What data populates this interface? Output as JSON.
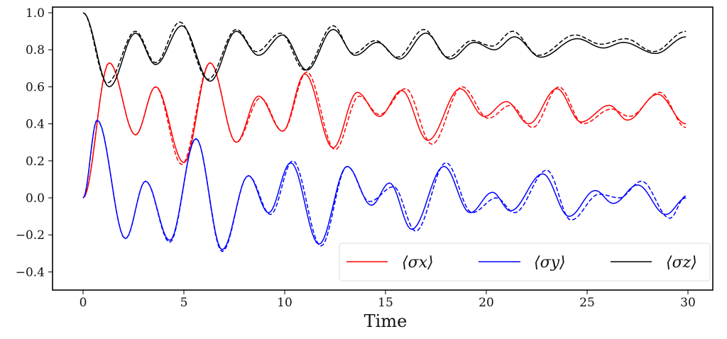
{
  "chart_data": {
    "type": "line",
    "title": "",
    "xlabel": "Time",
    "ylabel": "",
    "xlim": [
      -1.5,
      31
    ],
    "ylim": [
      -0.52,
      1.0
    ],
    "xticks": [
      "0",
      "5",
      "10",
      "15",
      "20",
      "25",
      "30"
    ],
    "xtick_values": [
      0,
      5,
      10,
      15,
      20,
      25,
      30
    ],
    "yticks": [
      "−0.4",
      "−0.2",
      "0.0",
      "0.2",
      "0.4",
      "0.6",
      "0.8",
      "1.0"
    ],
    "ytick_values": [
      -0.4,
      -0.2,
      0.0,
      0.2,
      0.4,
      0.6,
      0.8,
      1.0
    ],
    "legend": {
      "placement": "lower-right",
      "entries": [
        "⟨σx⟩",
        "⟨σy⟩",
        "⟨σz⟩"
      ]
    },
    "colors": {
      "sx": "#ff0000",
      "sy": "#0000ff",
      "sz": "#000000"
    },
    "series": [
      {
        "name": "sx",
        "style": "solid",
        "points": [
          [
            0,
            0
          ],
          [
            1.3,
            0.73
          ],
          [
            2.6,
            0.34
          ],
          [
            3.6,
            0.6
          ],
          [
            5.0,
            0.19
          ],
          [
            6.3,
            0.73
          ],
          [
            7.6,
            0.3
          ],
          [
            8.7,
            0.55
          ],
          [
            9.9,
            0.36
          ],
          [
            11.0,
            0.67
          ],
          [
            12.4,
            0.27
          ],
          [
            13.6,
            0.57
          ],
          [
            14.7,
            0.44
          ],
          [
            15.8,
            0.58
          ],
          [
            17.1,
            0.31
          ],
          [
            18.7,
            0.59
          ],
          [
            19.9,
            0.44
          ],
          [
            21.0,
            0.52
          ],
          [
            22.1,
            0.4
          ],
          [
            23.5,
            0.59
          ],
          [
            24.7,
            0.41
          ],
          [
            26.1,
            0.5
          ],
          [
            27.0,
            0.42
          ],
          [
            28.5,
            0.56
          ],
          [
            29.9,
            0.4
          ]
        ]
      },
      {
        "name": "sx",
        "style": "dashed",
        "points": [
          [
            0,
            0
          ],
          [
            1.3,
            0.73
          ],
          [
            2.6,
            0.34
          ],
          [
            3.6,
            0.6
          ],
          [
            4.9,
            0.18
          ],
          [
            6.3,
            0.73
          ],
          [
            7.6,
            0.3
          ],
          [
            8.8,
            0.54
          ],
          [
            9.9,
            0.36
          ],
          [
            11.1,
            0.68
          ],
          [
            12.5,
            0.26
          ],
          [
            13.7,
            0.55
          ],
          [
            14.7,
            0.45
          ],
          [
            16.0,
            0.59
          ],
          [
            17.3,
            0.29
          ],
          [
            18.8,
            0.6
          ],
          [
            20.1,
            0.43
          ],
          [
            21.2,
            0.5
          ],
          [
            22.3,
            0.38
          ],
          [
            23.6,
            0.6
          ],
          [
            24.8,
            0.4
          ],
          [
            26.2,
            0.48
          ],
          [
            27.1,
            0.44
          ],
          [
            28.6,
            0.57
          ],
          [
            29.9,
            0.38
          ]
        ]
      },
      {
        "name": "sy",
        "style": "solid",
        "points": [
          [
            0,
            0
          ],
          [
            0.7,
            0.42
          ],
          [
            2.1,
            -0.22
          ],
          [
            3.1,
            0.09
          ],
          [
            4.3,
            -0.23
          ],
          [
            5.6,
            0.32
          ],
          [
            6.9,
            -0.28
          ],
          [
            8.2,
            0.12
          ],
          [
            9.2,
            -0.08
          ],
          [
            10.3,
            0.19
          ],
          [
            11.7,
            -0.25
          ],
          [
            13.1,
            0.17
          ],
          [
            14.3,
            -0.04
          ],
          [
            15.2,
            0.08
          ],
          [
            16.3,
            -0.17
          ],
          [
            17.9,
            0.17
          ],
          [
            19.2,
            -0.08
          ],
          [
            20.3,
            0.03
          ],
          [
            21.2,
            -0.07
          ],
          [
            22.8,
            0.13
          ],
          [
            24.1,
            -0.1
          ],
          [
            25.4,
            0.04
          ],
          [
            26.3,
            -0.03
          ],
          [
            27.5,
            0.07
          ],
          [
            28.9,
            -0.09
          ],
          [
            29.9,
            0.0
          ]
        ]
      },
      {
        "name": "sy",
        "style": "dashed",
        "points": [
          [
            0,
            0
          ],
          [
            0.7,
            0.42
          ],
          [
            2.1,
            -0.22
          ],
          [
            3.1,
            0.09
          ],
          [
            4.3,
            -0.24
          ],
          [
            5.6,
            0.32
          ],
          [
            6.9,
            -0.29
          ],
          [
            8.2,
            0.12
          ],
          [
            9.3,
            -0.09
          ],
          [
            10.4,
            0.2
          ],
          [
            11.8,
            -0.26
          ],
          [
            13.1,
            0.17
          ],
          [
            14.2,
            -0.02
          ],
          [
            15.4,
            0.06
          ],
          [
            16.5,
            -0.18
          ],
          [
            18.0,
            0.19
          ],
          [
            19.3,
            -0.08
          ],
          [
            20.5,
            0.0
          ],
          [
            21.4,
            -0.08
          ],
          [
            23.0,
            0.15
          ],
          [
            24.2,
            -0.12
          ],
          [
            25.6,
            0.02
          ],
          [
            26.6,
            0.0
          ],
          [
            27.7,
            0.09
          ],
          [
            29.1,
            -0.11
          ],
          [
            29.9,
            0.01
          ]
        ]
      },
      {
        "name": "sz",
        "style": "solid",
        "points": [
          [
            0,
            1.0
          ],
          [
            1.3,
            0.6
          ],
          [
            2.6,
            0.89
          ],
          [
            3.6,
            0.72
          ],
          [
            4.9,
            0.93
          ],
          [
            6.3,
            0.63
          ],
          [
            7.6,
            0.9
          ],
          [
            8.7,
            0.77
          ],
          [
            9.9,
            0.88
          ],
          [
            11.1,
            0.69
          ],
          [
            12.4,
            0.91
          ],
          [
            13.5,
            0.77
          ],
          [
            14.6,
            0.84
          ],
          [
            15.7,
            0.75
          ],
          [
            17.0,
            0.89
          ],
          [
            18.2,
            0.75
          ],
          [
            19.4,
            0.84
          ],
          [
            20.4,
            0.8
          ],
          [
            21.4,
            0.87
          ],
          [
            22.7,
            0.76
          ],
          [
            24.5,
            0.86
          ],
          [
            25.8,
            0.81
          ],
          [
            26.8,
            0.84
          ],
          [
            28.4,
            0.78
          ],
          [
            29.9,
            0.87
          ]
        ]
      },
      {
        "name": "sz",
        "style": "dashed",
        "points": [
          [
            0,
            1.0
          ],
          [
            1.2,
            0.62
          ],
          [
            2.6,
            0.9
          ],
          [
            3.6,
            0.73
          ],
          [
            4.8,
            0.95
          ],
          [
            6.2,
            0.64
          ],
          [
            7.6,
            0.91
          ],
          [
            8.6,
            0.79
          ],
          [
            9.8,
            0.89
          ],
          [
            11.0,
            0.69
          ],
          [
            12.4,
            0.93
          ],
          [
            13.4,
            0.78
          ],
          [
            14.5,
            0.85
          ],
          [
            15.6,
            0.76
          ],
          [
            16.9,
            0.91
          ],
          [
            18.1,
            0.76
          ],
          [
            19.3,
            0.85
          ],
          [
            20.3,
            0.82
          ],
          [
            21.3,
            0.9
          ],
          [
            22.6,
            0.77
          ],
          [
            24.4,
            0.88
          ],
          [
            25.7,
            0.83
          ],
          [
            26.9,
            0.86
          ],
          [
            28.3,
            0.79
          ],
          [
            29.9,
            0.9
          ]
        ]
      }
    ]
  }
}
